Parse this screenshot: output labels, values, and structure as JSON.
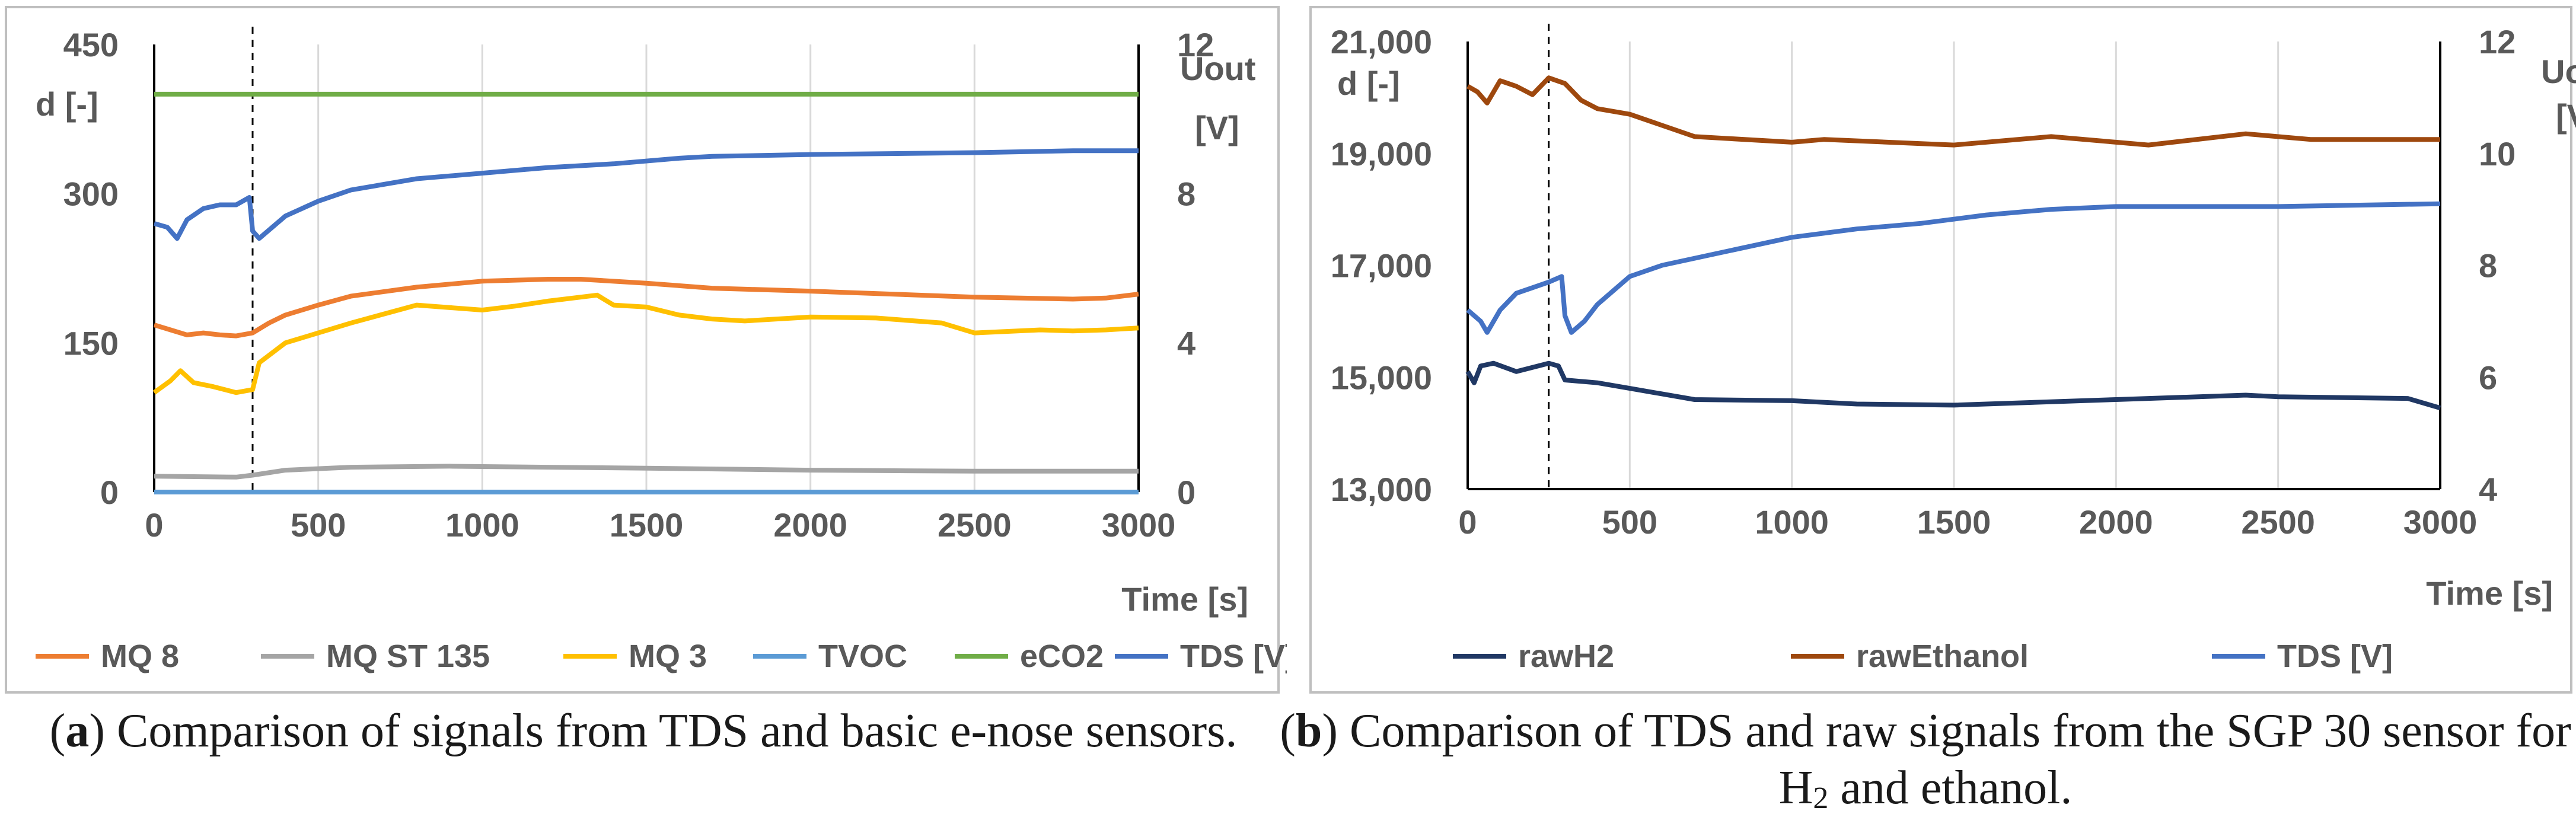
{
  "chart_data": [
    {
      "type": "line",
      "panel": "a",
      "title": "",
      "xlabel": "Time [s]",
      "ylabel": "d [-]",
      "y2label_line1": "Uout",
      "y2label_line2": "[V]",
      "xlim": [
        0,
        3000
      ],
      "ylim": [
        0,
        450
      ],
      "y2lim": [
        0,
        12
      ],
      "x_ticks": [
        "0",
        "500",
        "1000",
        "1500",
        "2000",
        "2500",
        "3000"
      ],
      "y_ticks": [
        "0",
        "150",
        "300",
        "450"
      ],
      "y2_ticks": [
        "0",
        "4",
        "8",
        "12"
      ],
      "marker_x": 300,
      "grid": "vertical",
      "legend": "bottom",
      "series": [
        {
          "name": "MQ 8",
          "color": "#ED7D31",
          "axis": "left",
          "x": [
            0,
            50,
            100,
            150,
            200,
            250,
            300,
            350,
            400,
            500,
            600,
            800,
            1000,
            1200,
            1300,
            1500,
            1700,
            2000,
            2500,
            2800,
            2900,
            3000
          ],
          "y": [
            168,
            163,
            158,
            160,
            158,
            157,
            160,
            170,
            178,
            188,
            197,
            206,
            212,
            214,
            214,
            210,
            205,
            202,
            196,
            194,
            195,
            199
          ]
        },
        {
          "name": "MQ ST 135",
          "color": "#A5A5A5",
          "axis": "left",
          "x": [
            0,
            250,
            300,
            400,
            600,
            900,
            1200,
            1500,
            2000,
            2500,
            3000
          ],
          "y": [
            16,
            15,
            17,
            22,
            25,
            26,
            25,
            24,
            22,
            21,
            21
          ]
        },
        {
          "name": "MQ 3",
          "color": "#FFC000",
          "axis": "left",
          "x": [
            0,
            50,
            80,
            120,
            180,
            250,
            300,
            320,
            400,
            500,
            600,
            800,
            1000,
            1100,
            1200,
            1300,
            1350,
            1400,
            1500,
            1600,
            1700,
            1800,
            2000,
            2200,
            2400,
            2500,
            2700,
            2800,
            2900,
            3000
          ],
          "y": [
            100,
            112,
            122,
            110,
            106,
            100,
            103,
            130,
            150,
            160,
            170,
            188,
            183,
            187,
            192,
            196,
            198,
            188,
            186,
            178,
            174,
            172,
            176,
            175,
            170,
            160,
            163,
            162,
            163,
            165
          ]
        },
        {
          "name": "TVOC",
          "color": "#5B9BD5",
          "axis": "left",
          "x": [
            0,
            3000
          ],
          "y": [
            0,
            0
          ]
        },
        {
          "name": "eCO2",
          "color": "#70AD47",
          "axis": "left",
          "x": [
            0,
            3000
          ],
          "y": [
            400,
            400
          ]
        },
        {
          "name": "TDS [V]",
          "color": "#4472C4",
          "axis": "right",
          "x": [
            0,
            40,
            70,
            100,
            150,
            200,
            250,
            290,
            300,
            320,
            360,
            400,
            500,
            600,
            800,
            1000,
            1200,
            1400,
            1600,
            1700,
            2000,
            2500,
            2800,
            3000
          ],
          "y": [
            7.2,
            7.1,
            6.8,
            7.3,
            7.6,
            7.7,
            7.7,
            7.9,
            7.0,
            6.8,
            7.1,
            7.4,
            7.8,
            8.1,
            8.4,
            8.55,
            8.7,
            8.8,
            8.95,
            9.0,
            9.05,
            9.1,
            9.15,
            9.15
          ]
        }
      ],
      "caption_label": "a",
      "caption": "Comparison of signals from TDS and basic e-nose sensors."
    },
    {
      "type": "line",
      "panel": "b",
      "title": "",
      "xlabel": "Time [s]",
      "ylabel": "d [-]",
      "y2label_line1": "Uout",
      "y2label_line2": "[V]",
      "xlim": [
        0,
        3000
      ],
      "ylim": [
        13000,
        21000
      ],
      "y2lim": [
        4,
        12
      ],
      "x_ticks": [
        "0",
        "500",
        "1000",
        "1500",
        "2000",
        "2500",
        "3000"
      ],
      "y_ticks": [
        "13,000",
        "15,000",
        "17,000",
        "19,000",
        "21,000"
      ],
      "y2_ticks": [
        "4",
        "6",
        "8",
        "10",
        "12"
      ],
      "marker_x": 250,
      "grid": "vertical",
      "legend": "bottom",
      "series": [
        {
          "name": "rawH2",
          "color": "#203864",
          "axis": "left",
          "x": [
            0,
            20,
            40,
            80,
            150,
            250,
            280,
            300,
            400,
            500,
            700,
            1000,
            1200,
            1500,
            2000,
            2400,
            2500,
            2900,
            3000
          ],
          "y": [
            15100,
            14900,
            15200,
            15250,
            15100,
            15250,
            15200,
            14950,
            14900,
            14800,
            14600,
            14580,
            14520,
            14500,
            14600,
            14680,
            14650,
            14620,
            14450
          ]
        },
        {
          "name": "rawEthanol",
          "color": "#9E480E",
          "axis": "left",
          "x": [
            0,
            30,
            60,
            100,
            150,
            200,
            250,
            300,
            350,
            400,
            500,
            700,
            1000,
            1100,
            1500,
            1800,
            2000,
            2100,
            2400,
            2600,
            3000
          ],
          "y": [
            20200,
            20100,
            19900,
            20300,
            20200,
            20050,
            20350,
            20250,
            19950,
            19800,
            19700,
            19300,
            19200,
            19250,
            19150,
            19300,
            19200,
            19150,
            19350,
            19250,
            19250
          ]
        },
        {
          "name": "TDS [V]",
          "color": "#4472C4",
          "axis": "right",
          "x": [
            0,
            40,
            60,
            100,
            150,
            200,
            250,
            290,
            300,
            320,
            360,
            400,
            500,
            600,
            800,
            1000,
            1200,
            1400,
            1600,
            1800,
            2000,
            2500,
            3000
          ],
          "y": [
            7.2,
            7.0,
            6.8,
            7.2,
            7.5,
            7.6,
            7.7,
            7.8,
            7.1,
            6.8,
            7.0,
            7.3,
            7.8,
            8.0,
            8.25,
            8.5,
            8.65,
            8.75,
            8.9,
            9.0,
            9.05,
            9.05,
            9.1
          ]
        }
      ],
      "caption_label": "b",
      "caption": "Comparison of TDS and raw signals from the SGP 30 sensor for H",
      "caption_sub": "2",
      "caption_tail": " and ethanol."
    }
  ]
}
